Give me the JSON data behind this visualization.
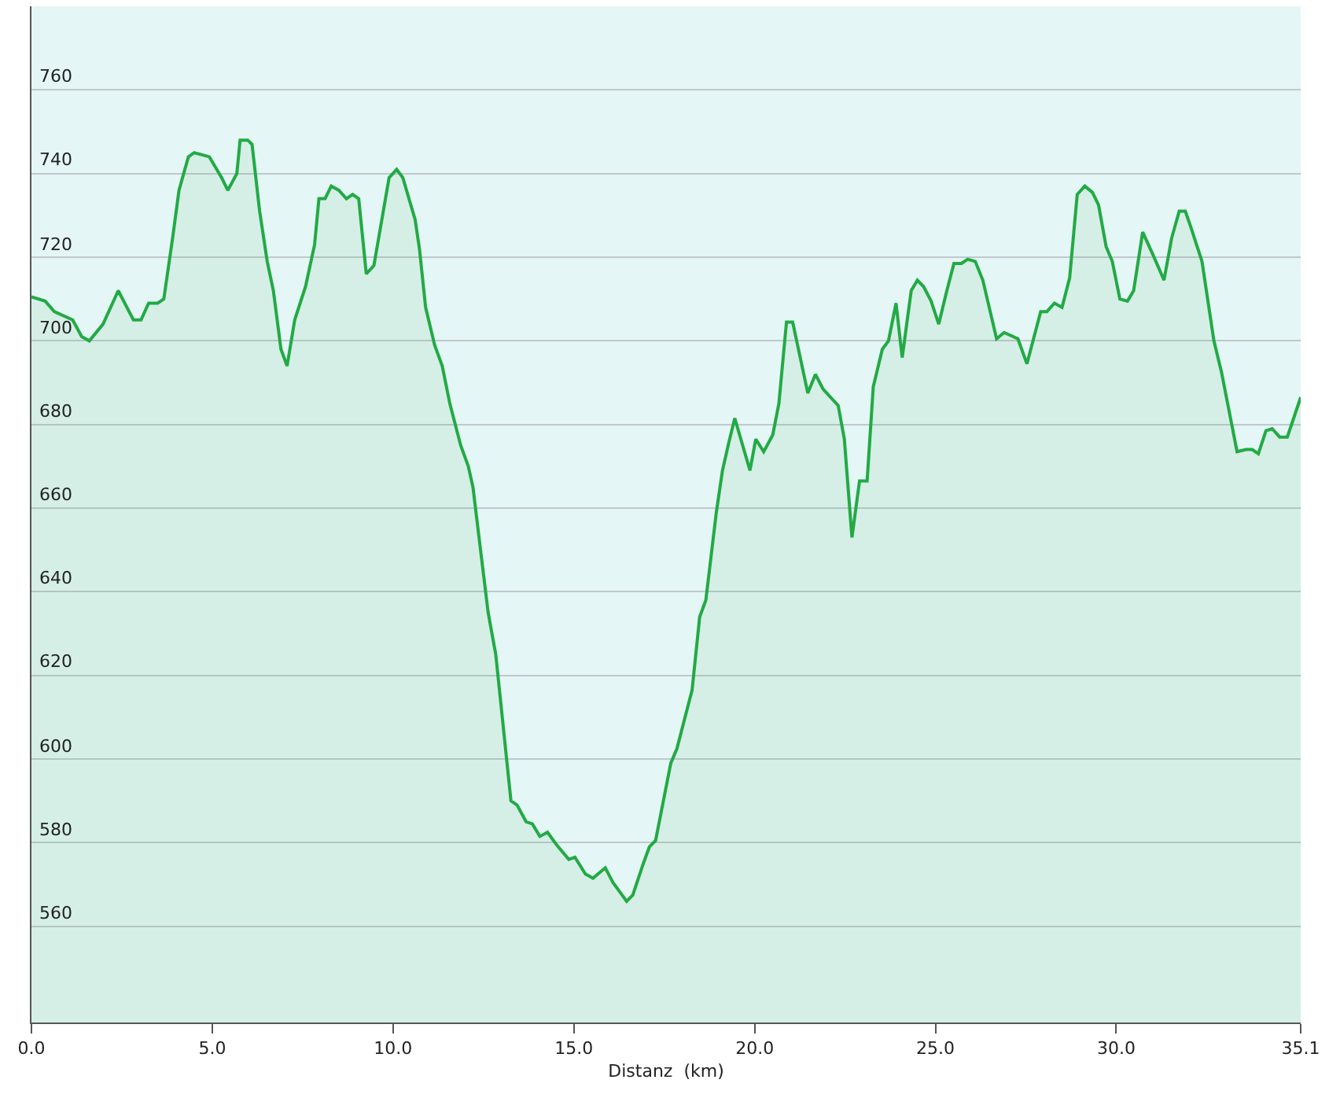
{
  "chart_data": {
    "type": "area",
    "xlabel": "Distanz  (km)",
    "x": [
      0.0,
      0.38,
      0.63,
      1.14,
      1.39,
      1.6,
      1.98,
      2.4,
      2.82,
      3.03,
      3.24,
      3.49,
      3.66,
      3.91,
      4.08,
      4.34,
      4.5,
      4.92,
      5.26,
      5.43,
      5.68,
      5.77,
      5.98,
      6.1,
      6.31,
      6.52,
      6.69,
      6.9,
      7.07,
      7.28,
      7.58,
      7.83,
      7.95,
      8.12,
      8.29,
      8.5,
      8.71,
      8.88,
      9.05,
      9.26,
      9.47,
      9.89,
      10.1,
      10.27,
      10.61,
      10.73,
      10.9,
      11.15,
      11.36,
      11.57,
      11.87,
      12.08,
      12.21,
      12.37,
      12.63,
      12.84,
      13.26,
      13.43,
      13.68,
      13.85,
      14.06,
      14.27,
      14.52,
      14.86,
      15.03,
      15.32,
      15.53,
      15.87,
      16.08,
      16.46,
      16.63,
      16.92,
      17.09,
      17.26,
      17.68,
      17.85,
      18.27,
      18.48,
      18.65,
      18.94,
      19.11,
      19.28,
      19.45,
      19.87,
      20.03,
      20.25,
      20.5,
      20.67,
      20.88,
      21.05,
      21.47,
      21.68,
      21.89,
      22.31,
      22.48,
      22.69,
      22.9,
      23.11,
      23.28,
      23.53,
      23.7,
      23.91,
      24.08,
      24.33,
      24.5,
      24.67,
      24.88,
      25.09,
      25.3,
      25.51,
      25.72,
      25.89,
      26.1,
      26.31,
      26.69,
      26.9,
      27.28,
      27.53,
      27.91,
      28.08,
      28.29,
      28.5,
      28.71,
      28.92,
      29.13,
      29.34,
      29.51,
      29.72,
      29.89,
      30.1,
      30.31,
      30.48,
      30.73,
      31.02,
      31.32,
      31.53,
      31.74,
      31.91,
      32.07,
      32.37,
      32.7,
      32.91,
      33.34,
      33.59,
      33.76,
      33.93,
      34.14,
      34.31,
      34.52,
      34.73,
      35.1
    ],
    "series": [
      {
        "color": "#22aa44",
        "values": [
          710.5,
          709.5,
          707,
          705,
          701,
          700,
          704,
          712,
          705,
          705,
          709,
          709,
          710,
          725,
          736,
          744,
          745,
          744,
          739,
          736,
          740,
          748,
          748,
          747,
          731,
          719,
          712,
          698,
          694,
          705,
          713,
          723,
          734,
          734,
          737,
          736,
          734,
          735,
          734,
          716,
          718,
          739,
          741,
          739,
          729,
          722,
          708,
          699,
          694,
          685,
          675,
          670,
          665,
          653.5,
          635,
          625,
          590,
          589,
          585,
          584.5,
          581.5,
          582.5,
          579.5,
          576,
          576.5,
          572.5,
          571.5,
          574,
          570.5,
          566,
          567.5,
          575,
          579,
          580.5,
          599,
          602.5,
          616.5,
          634,
          638,
          659,
          669,
          675.5,
          681.5,
          669,
          676.5,
          673.5,
          677.5,
          685,
          704.5,
          704.5,
          687.5,
          692,
          688.5,
          684.5,
          676.5,
          653,
          666.5,
          666.5,
          689,
          698,
          700,
          709,
          696,
          712,
          714.5,
          713,
          709.5,
          704,
          711.5,
          718.5,
          718.5,
          719.5,
          719,
          714.5,
          700.5,
          702,
          700.5,
          694.5,
          707,
          707,
          709,
          708,
          715,
          735,
          737,
          735.5,
          732.5,
          722.5,
          719,
          710,
          709.5,
          712,
          726,
          720.5,
          714.5,
          724.5,
          731,
          731,
          727,
          719,
          700,
          692.5,
          673.5,
          674,
          674,
          673,
          678.5,
          679,
          677,
          677,
          686.5
        ]
      }
    ],
    "xlim": [
      0,
      35.1
    ],
    "xticks": [
      {
        "value": 0,
        "label": "0.0"
      },
      {
        "value": 5,
        "label": "5.0"
      },
      {
        "value": 10,
        "label": "10.0"
      },
      {
        "value": 15,
        "label": "15.0"
      },
      {
        "value": 20,
        "label": "20.0"
      },
      {
        "value": 25,
        "label": "25.0"
      },
      {
        "value": 30,
        "label": "30.0"
      },
      35.1
    ],
    "ylim": [
      537,
      780
    ],
    "yticks": [
      560,
      580,
      600,
      620,
      640,
      660,
      680,
      700,
      720,
      740,
      760
    ],
    "grid": "y",
    "marker": "none",
    "line_style": "solid"
  }
}
